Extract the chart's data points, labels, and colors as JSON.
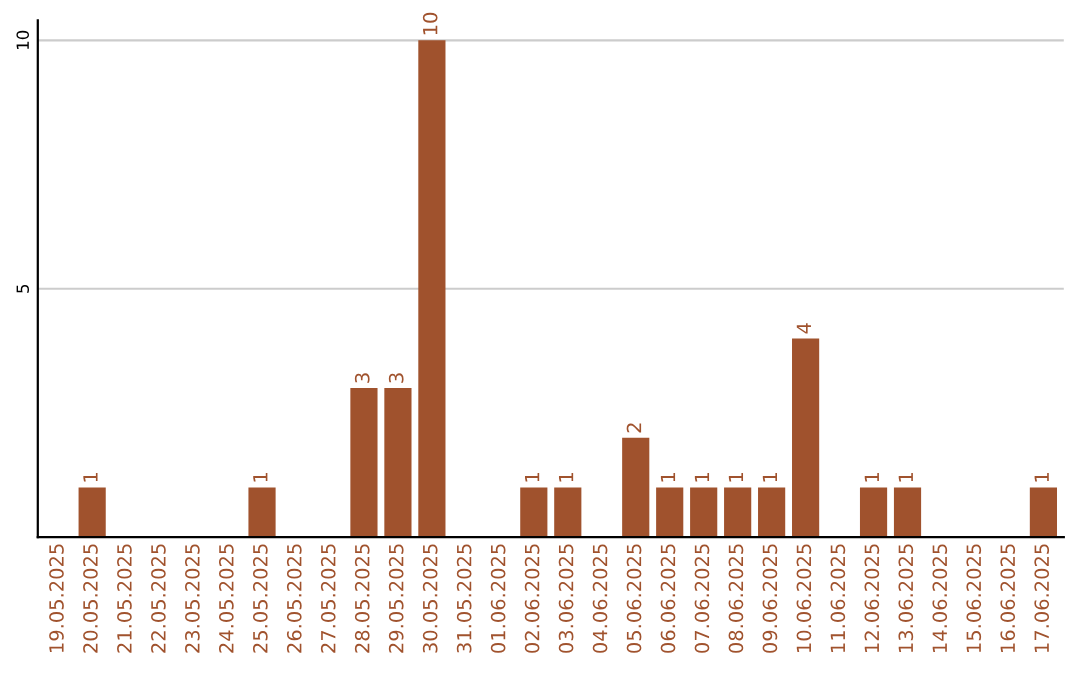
{
  "chart_data": {
    "type": "bar",
    "categories": [
      "19.05.2025",
      "20.05.2025",
      "21.05.2025",
      "22.05.2025",
      "23.05.2025",
      "24.05.2025",
      "25.05.2025",
      "26.05.2025",
      "27.05.2025",
      "28.05.2025",
      "29.05.2025",
      "30.05.2025",
      "31.05.2025",
      "01.06.2025",
      "02.06.2025",
      "03.06.2025",
      "04.06.2025",
      "05.06.2025",
      "06.06.2025",
      "07.06.2025",
      "08.06.2025",
      "09.06.2025",
      "10.06.2025",
      "11.06.2025",
      "12.06.2025",
      "13.06.2025",
      "14.06.2025",
      "15.06.2025",
      "16.06.2025",
      "17.06.2025"
    ],
    "values": [
      0,
      1,
      0,
      0,
      0,
      0,
      1,
      0,
      0,
      3,
      3,
      10,
      0,
      0,
      1,
      1,
      0,
      2,
      1,
      1,
      1,
      1,
      4,
      0,
      1,
      1,
      0,
      0,
      0,
      1
    ],
    "value_labels": [
      null,
      "1",
      null,
      null,
      null,
      null,
      "1",
      null,
      null,
      "3",
      "3",
      "10",
      null,
      null,
      "1",
      "1",
      null,
      "2",
      "1",
      "1",
      "1",
      "1",
      "4",
      null,
      "1",
      "1",
      null,
      null,
      null,
      "1"
    ],
    "color": "#a0522d",
    "ylim": [
      0,
      10.4
    ],
    "yticks": [
      5,
      10
    ],
    "grid": "y"
  }
}
